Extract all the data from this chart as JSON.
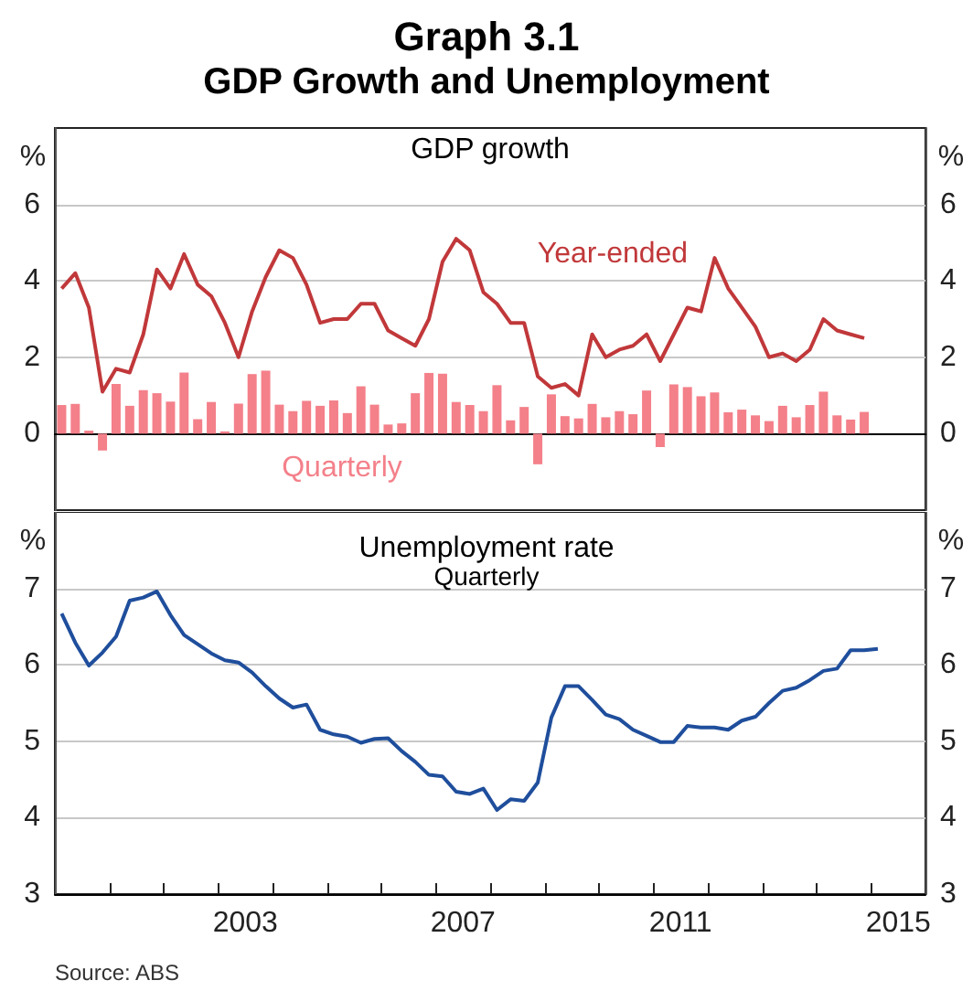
{
  "chart_data": [
    {
      "type": "bar",
      "title": "Graph 3.1",
      "subtitle": "GDP Growth and Unemployment",
      "annotations": [
        "GDP growth"
      ],
      "ylabel": "%",
      "y2label": "%",
      "x": [
        2000.125,
        2000.375,
        2000.625,
        2000.875,
        2001.125,
        2001.375,
        2001.625,
        2001.875,
        2002.125,
        2002.375,
        2002.625,
        2002.875,
        2003.125,
        2003.375,
        2003.625,
        2003.875,
        2004.125,
        2004.375,
        2004.625,
        2004.875,
        2005.125,
        2005.375,
        2005.625,
        2005.875,
        2006.125,
        2006.375,
        2006.625,
        2006.875,
        2007.125,
        2007.375,
        2007.625,
        2007.875,
        2008.125,
        2008.375,
        2008.625,
        2008.875,
        2009.125,
        2009.375,
        2009.625,
        2009.875,
        2010.125,
        2010.375,
        2010.625,
        2010.875,
        2011.125,
        2011.375,
        2011.625,
        2011.875,
        2012.125,
        2012.375,
        2012.625,
        2012.875,
        2013.125,
        2013.375,
        2013.625,
        2013.875,
        2014.125,
        2014.375,
        2014.625,
        2014.875
      ],
      "series": [
        {
          "name": "Quarterly",
          "color": "#f4808a",
          "values": [
            0.75,
            0.78,
            0.08,
            -0.44,
            1.3,
            0.73,
            1.14,
            1.06,
            0.84,
            1.6,
            0.38,
            0.83,
            0.06,
            0.79,
            1.56,
            1.65,
            0.76,
            0.59,
            0.86,
            0.73,
            0.87,
            0.54,
            1.24,
            0.76,
            0.24,
            0.27,
            1.06,
            1.59,
            1.57,
            0.83,
            0.75,
            0.59,
            1.27,
            0.35,
            0.7,
            -0.8,
            1.03,
            0.46,
            0.4,
            0.78,
            0.43,
            0.59,
            0.51,
            1.13,
            -0.35,
            1.29,
            1.22,
            0.98,
            1.08,
            0.56,
            0.63,
            0.48,
            0.33,
            0.73,
            0.43,
            0.75,
            1.1,
            0.48,
            0.37,
            0.57
          ]
        },
        {
          "name": "Year-ended",
          "type": "line",
          "color": "#c1383a",
          "values": [
            3.8,
            4.2,
            3.3,
            1.1,
            1.7,
            1.6,
            2.6,
            4.3,
            3.8,
            4.7,
            3.9,
            3.6,
            2.9,
            2.0,
            3.2,
            4.1,
            4.8,
            4.6,
            3.9,
            2.9,
            3.0,
            3.0,
            3.4,
            3.4,
            2.7,
            2.5,
            2.3,
            3.0,
            4.5,
            5.1,
            4.8,
            3.7,
            3.4,
            2.9,
            2.9,
            1.5,
            1.2,
            1.3,
            1.0,
            2.6,
            2.0,
            2.2,
            2.3,
            2.6,
            1.9,
            2.6,
            3.3,
            3.2,
            4.6,
            3.8,
            3.3,
            2.8,
            2.0,
            2.1,
            1.9,
            2.2,
            3.0,
            2.7,
            2.6,
            2.5
          ]
        }
      ],
      "xlim": [
        2000,
        2016
      ],
      "ylim": [
        -2,
        8
      ],
      "yticks": [
        0,
        2,
        4,
        6
      ],
      "y2lim": [
        -2,
        8
      ],
      "y2ticks": [
        0,
        2,
        4,
        6
      ],
      "grid": "y",
      "legend": false,
      "tick_labels": "y"
    },
    {
      "type": "line",
      "title": "Unemployment rate",
      "subtitle": "Quarterly",
      "annotations": [
        "Source: ABS"
      ],
      "ylabel": "%",
      "y2label": "%",
      "x": [
        2000.125,
        2000.375,
        2000.625,
        2000.875,
        2001.125,
        2001.375,
        2001.625,
        2001.875,
        2002.125,
        2002.375,
        2002.625,
        2002.875,
        2003.125,
        2003.375,
        2003.625,
        2003.875,
        2004.125,
        2004.375,
        2004.625,
        2004.875,
        2005.125,
        2005.375,
        2005.625,
        2005.875,
        2006.125,
        2006.375,
        2006.625,
        2006.875,
        2007.125,
        2007.375,
        2007.625,
        2007.875,
        2008.125,
        2008.375,
        2008.625,
        2008.875,
        2009.125,
        2009.375,
        2009.625,
        2009.875,
        2010.125,
        2010.375,
        2010.625,
        2010.875,
        2011.125,
        2011.375,
        2011.625,
        2011.875,
        2012.125,
        2012.375,
        2012.625,
        2012.875,
        2013.125,
        2013.375,
        2013.625,
        2013.875,
        2014.125,
        2014.375,
        2014.625,
        2014.875,
        2015.125
      ],
      "series": [
        {
          "color": "#1f4e9c",
          "values": [
            6.67,
            6.29,
            5.99,
            6.16,
            6.37,
            6.84,
            6.88,
            6.96,
            6.65,
            6.39,
            6.27,
            6.15,
            6.06,
            6.03,
            5.9,
            5.72,
            5.56,
            5.44,
            5.48,
            5.15,
            5.09,
            5.06,
            4.98,
            5.03,
            5.04,
            4.87,
            4.73,
            4.56,
            4.54,
            4.34,
            4.31,
            4.38,
            4.1,
            4.24,
            4.22,
            4.46,
            5.31,
            5.72,
            5.72,
            5.54,
            5.35,
            5.29,
            5.15,
            5.07,
            4.99,
            4.99,
            5.2,
            5.18,
            5.18,
            5.15,
            5.27,
            5.32,
            5.5,
            5.66,
            5.7,
            5.8,
            5.92,
            5.95,
            6.19,
            6.19,
            6.21
          ]
        }
      ],
      "xlim": [
        2000,
        2016
      ],
      "xticks": [
        {
          "value": 2001,
          "label": null
        },
        {
          "value": 2002,
          "label": null
        },
        {
          "value": 2003,
          "label": null
        },
        {
          "value": 2004,
          "label": null
        },
        {
          "value": 2005,
          "label": null
        },
        {
          "value": 2006,
          "label": null
        },
        {
          "value": 2007,
          "label": null
        },
        {
          "value": 2008,
          "label": null
        },
        {
          "value": 2009,
          "label": null
        },
        {
          "value": 2010,
          "label": null
        },
        {
          "value": 2011,
          "label": null
        },
        {
          "value": 2012,
          "label": null
        },
        {
          "value": 2013,
          "label": null
        },
        {
          "value": 2014,
          "label": null
        },
        {
          "value": 2015,
          "label": null
        },
        {
          "value": 2003.5,
          "label": "2003"
        },
        {
          "value": 2007.5,
          "label": "2007"
        },
        {
          "value": 2011.5,
          "label": "2011"
        },
        {
          "value": 2015.5,
          "label": "2015"
        }
      ],
      "ylim": [
        3,
        8
      ],
      "yticks": [
        3,
        4,
        5,
        6,
        7
      ],
      "y2lim": [
        3,
        8
      ],
      "y2ticks": [
        3,
        4,
        5,
        6,
        7
      ],
      "grid": "y",
      "legend": false
    }
  ]
}
